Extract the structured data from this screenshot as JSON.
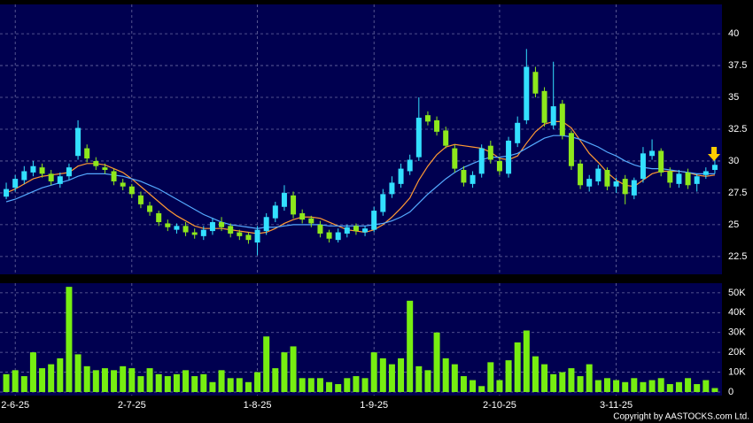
{
  "chart_data": [
    {
      "type": "candlestick",
      "categories": [
        null,
        "2-6-25",
        null,
        null,
        null,
        null,
        null,
        null,
        null,
        null,
        null,
        null,
        null,
        null,
        "2-7-25",
        null,
        null,
        null,
        null,
        null,
        null,
        null,
        null,
        null,
        null,
        null,
        null,
        null,
        "1-8-25",
        null,
        null,
        null,
        null,
        null,
        null,
        null,
        null,
        null,
        null,
        null,
        null,
        "1-9-25",
        null,
        null,
        null,
        null,
        null,
        null,
        null,
        null,
        null,
        null,
        null,
        null,
        null,
        "2-10-25",
        null,
        null,
        null,
        null,
        null,
        null,
        null,
        null,
        null,
        null,
        null,
        null,
        "3-11-25",
        null,
        null,
        null,
        null,
        null,
        null,
        null,
        null,
        null,
        null,
        null
      ],
      "open": [
        27.2,
        27.9,
        28.5,
        29.1,
        29.5,
        29.0,
        28.2,
        28.8,
        30.4,
        31.0,
        30.0,
        29.5,
        29.2,
        28.3,
        28.0,
        27.3,
        26.5,
        25.9,
        25.1,
        24.6,
        24.9,
        24.4,
        24.1,
        24.5,
        25.2,
        24.9,
        24.4,
        24.2,
        23.6,
        24.5,
        25.5,
        26.4,
        27.3,
        25.9,
        25.5,
        25.0,
        24.4,
        23.8,
        24.3,
        24.9,
        24.4,
        24.6,
        26.0,
        27.4,
        28.2,
        29.2,
        30.3,
        33.6,
        33.2,
        32.4,
        31.0,
        29.3,
        28.2,
        29.0,
        31.2,
        30.0,
        29.0,
        31.4,
        33.2,
        37.0,
        35.5,
        32.8,
        34.5,
        32.2,
        29.8,
        28.0,
        28.4,
        29.3,
        28.0,
        28.6,
        27.3,
        28.6,
        30.4,
        30.8,
        29.2,
        28.2,
        29.1,
        28.2,
        28.9,
        29.3
      ],
      "high": [
        28.3,
        28.9,
        29.6,
        30.0,
        29.8,
        29.3,
        29.1,
        29.8,
        33.2,
        31.3,
        30.3,
        29.8,
        29.4,
        28.6,
        28.2,
        27.6,
        26.8,
        26.1,
        25.4,
        25.1,
        25.2,
        24.7,
        24.9,
        25.5,
        25.6,
        25.1,
        24.6,
        24.4,
        24.9,
        25.9,
        26.8,
        28.1,
        27.6,
        26.2,
        25.7,
        25.3,
        24.6,
        24.7,
        25.0,
        25.1,
        24.9,
        26.4,
        27.8,
        28.8,
        29.8,
        30.5,
        35.0,
        33.9,
        33.5,
        32.7,
        31.3,
        29.6,
        29.2,
        31.3,
        31.6,
        30.3,
        31.9,
        33.5,
        38.8,
        37.4,
        35.8,
        37.8,
        34.8,
        32.4,
        30.1,
        28.9,
        29.7,
        29.5,
        28.7,
        28.9,
        28.7,
        31.1,
        31.7,
        31.0,
        29.5,
        29.3,
        29.4,
        29.0,
        29.5,
        30.1
      ],
      "low": [
        27.0,
        27.6,
        28.2,
        28.8,
        28.7,
        28.1,
        27.9,
        28.5,
        30.1,
        29.9,
        29.3,
        29.0,
        28.1,
        27.7,
        27.1,
        26.3,
        25.7,
        24.9,
        24.5,
        24.3,
        24.1,
        23.9,
        23.8,
        24.2,
        24.5,
        24.0,
        23.8,
        23.5,
        22.6,
        24.2,
        25.2,
        26.1,
        25.5,
        25.1,
        24.8,
        24.0,
        23.6,
        23.6,
        24.0,
        24.2,
        24.1,
        24.4,
        25.7,
        27.1,
        27.9,
        28.9,
        30.0,
        32.8,
        32.0,
        31.0,
        29.1,
        28.0,
        27.9,
        28.7,
        29.8,
        28.9,
        28.7,
        31.1,
        32.9,
        35.0,
        32.7,
        32.5,
        31.7,
        29.3,
        27.8,
        27.6,
        28.1,
        27.7,
        27.5,
        26.6,
        27.0,
        28.3,
        30.1,
        28.8,
        27.9,
        27.9,
        27.8,
        27.6,
        28.6,
        29.0
      ],
      "close": [
        27.8,
        28.6,
        29.2,
        29.6,
        29.0,
        28.4,
        28.8,
        29.5,
        32.6,
        30.2,
        29.6,
        29.3,
        28.4,
        28.0,
        27.4,
        26.6,
        26.0,
        25.2,
        24.8,
        24.9,
        24.4,
        24.2,
        24.6,
        25.2,
        24.8,
        24.3,
        24.1,
        23.8,
        24.6,
        25.6,
        26.5,
        27.5,
        25.8,
        25.4,
        25.1,
        24.3,
        23.9,
        24.4,
        24.8,
        24.5,
        24.7,
        26.1,
        27.4,
        28.3,
        29.4,
        30.1,
        33.4,
        33.1,
        32.3,
        31.2,
        29.4,
        28.3,
        28.9,
        31.0,
        30.1,
        29.2,
        31.6,
        33.0,
        37.4,
        35.3,
        33.0,
        34.3,
        32.0,
        29.6,
        28.1,
        28.6,
        29.4,
        28.0,
        28.4,
        27.4,
        28.5,
        30.6,
        30.8,
        29.1,
        28.3,
        29.0,
        28.1,
        28.8,
        29.2,
        29.7
      ],
      "up_color": "#33e0ff",
      "down_color": "#8ee81c",
      "series": [
        {
          "color": "#ff9933",
          "values": [
            27.5,
            27.8,
            28.2,
            28.6,
            28.8,
            28.9,
            29.0,
            29.1,
            29.6,
            29.8,
            29.8,
            29.7,
            29.4,
            29.1,
            28.6,
            28.0,
            27.4,
            26.8,
            26.2,
            25.7,
            25.3,
            24.9,
            24.7,
            24.7,
            24.7,
            24.6,
            24.5,
            24.4,
            24.3,
            24.4,
            24.7,
            25.1,
            25.4,
            25.6,
            25.6,
            25.5,
            25.2,
            24.9,
            24.6,
            24.5,
            24.4,
            24.6,
            25.0,
            25.6,
            26.3,
            27.1,
            28.5,
            29.6,
            30.5,
            31.1,
            31.3,
            31.2,
            31.1,
            31.0,
            30.7,
            30.2,
            30.1,
            30.4,
            31.4,
            32.3,
            32.9,
            33.1,
            33.1,
            32.6,
            31.6,
            30.6,
            29.9,
            29.1,
            28.5,
            28.1,
            28.0,
            28.5,
            29.0,
            29.2,
            29.2,
            29.2,
            29.1,
            28.9,
            28.8,
            28.9
          ]
        },
        {
          "color": "#55aaff",
          "values": [
            26.8,
            27.0,
            27.3,
            27.6,
            27.9,
            28.1,
            28.3,
            28.5,
            28.8,
            29.0,
            29.0,
            29.0,
            28.9,
            28.8,
            28.6,
            28.4,
            28.1,
            27.8,
            27.4,
            27.0,
            26.6,
            26.2,
            25.8,
            25.5,
            25.2,
            25.0,
            24.9,
            24.8,
            24.7,
            24.8,
            24.8,
            24.9,
            25.0,
            25.0,
            25.0,
            25.0,
            24.9,
            24.9,
            24.9,
            24.9,
            24.9,
            25.0,
            25.1,
            25.3,
            25.6,
            26.0,
            26.7,
            27.4,
            28.0,
            28.6,
            29.1,
            29.5,
            29.8,
            30.1,
            30.3,
            30.3,
            30.4,
            30.6,
            31.0,
            31.4,
            31.8,
            32.0,
            32.0,
            31.9,
            31.7,
            31.4,
            31.1,
            30.7,
            30.4,
            30.0,
            29.7,
            29.5,
            29.4,
            29.4,
            29.3,
            29.2,
            29.1,
            29.0,
            29.0,
            29.0
          ]
        }
      ],
      "ylim": [
        21.1,
        42.3
      ],
      "yticks": [
        22.5,
        25,
        27.5,
        30,
        32.5,
        35,
        37.5,
        40
      ],
      "grid": true
    },
    {
      "type": "bar",
      "color": "#77ee11",
      "values": [
        9000,
        11000,
        8000,
        20000,
        12000,
        14000,
        17000,
        53000,
        19000,
        13000,
        11000,
        12000,
        11000,
        13000,
        12000,
        8000,
        12000,
        9000,
        8000,
        9000,
        11000,
        8000,
        9000,
        5000,
        11000,
        7000,
        7000,
        5000,
        10000,
        28000,
        12000,
        20000,
        23000,
        7000,
        7000,
        7000,
        5000,
        4000,
        7000,
        8000,
        7000,
        20000,
        17000,
        14000,
        17000,
        46000,
        13000,
        11000,
        30000,
        17000,
        14000,
        8000,
        6000,
        3000,
        15000,
        6000,
        16000,
        25000,
        31000,
        18000,
        14000,
        9000,
        10000,
        12000,
        8000,
        14000,
        6000,
        7000,
        6000,
        5000,
        7000,
        5000,
        6000,
        7000,
        4000,
        5000,
        7000,
        4000,
        6000,
        2000
      ],
      "ylim": [
        0,
        54400
      ],
      "yticks": [
        0,
        {
          "value": 10000,
          "label": "10K"
        },
        {
          "value": 20000,
          "label": "20K"
        },
        {
          "value": 30000,
          "label": "30K"
        },
        {
          "value": 40000,
          "label": "40K"
        },
        {
          "value": 50000,
          "label": "50K"
        }
      ],
      "grid": true
    }
  ],
  "copyright": "Copyright by AASTOCKS.com Ltd."
}
